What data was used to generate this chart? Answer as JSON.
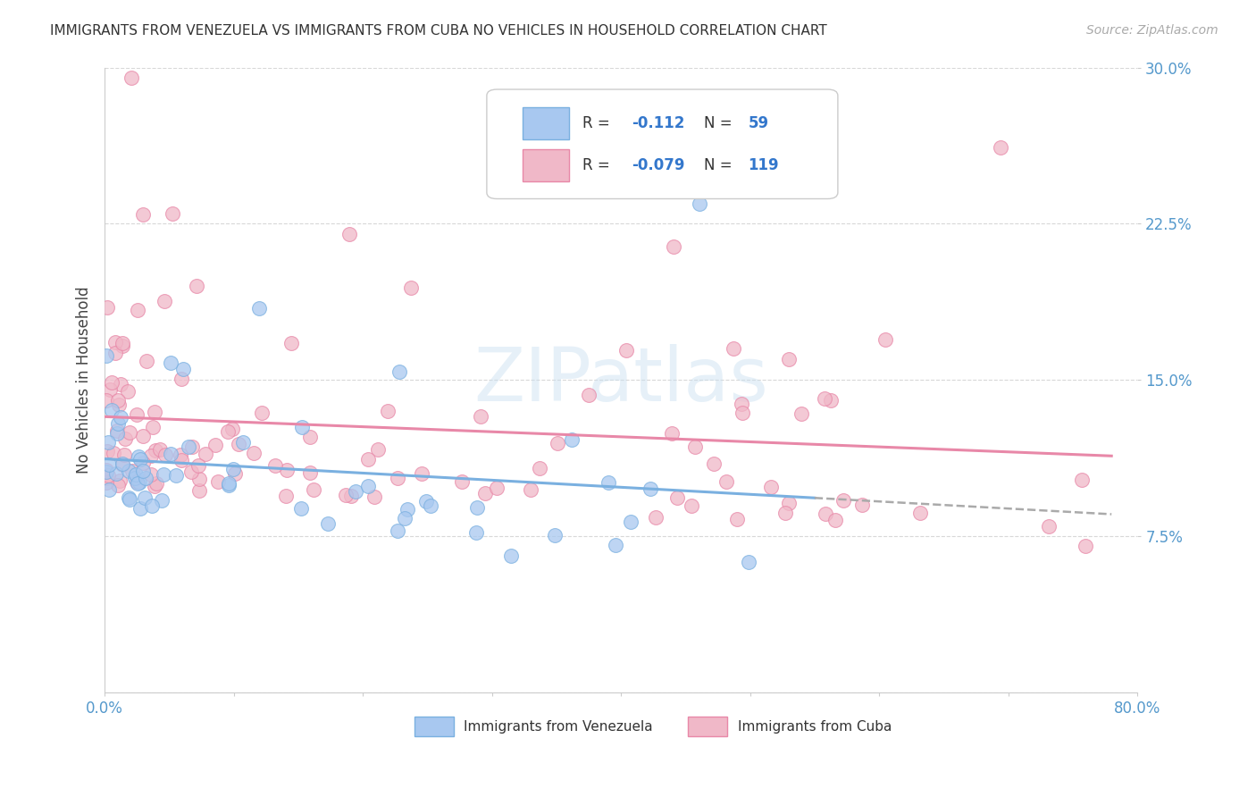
{
  "title": "IMMIGRANTS FROM VENEZUELA VS IMMIGRANTS FROM CUBA NO VEHICLES IN HOUSEHOLD CORRELATION CHART",
  "source": "Source: ZipAtlas.com",
  "ylabel": "No Vehicles in Household",
  "xlim": [
    0.0,
    0.8
  ],
  "ylim": [
    0.0,
    0.3
  ],
  "yticks": [
    0.0,
    0.075,
    0.15,
    0.225,
    0.3
  ],
  "ytick_labels": [
    "",
    "7.5%",
    "15.0%",
    "22.5%",
    "30.0%"
  ],
  "venezuela_color": "#7ab0e0",
  "venezuela_fill": "#a8c8f0",
  "cuba_color": "#e888a8",
  "cuba_fill": "#f0b8c8",
  "venezuela_R": -0.112,
  "venezuela_N": 59,
  "cuba_R": -0.079,
  "cuba_N": 119,
  "watermark": "ZIPatlas",
  "background_color": "#ffffff",
  "grid_color": "#d8d8d8"
}
